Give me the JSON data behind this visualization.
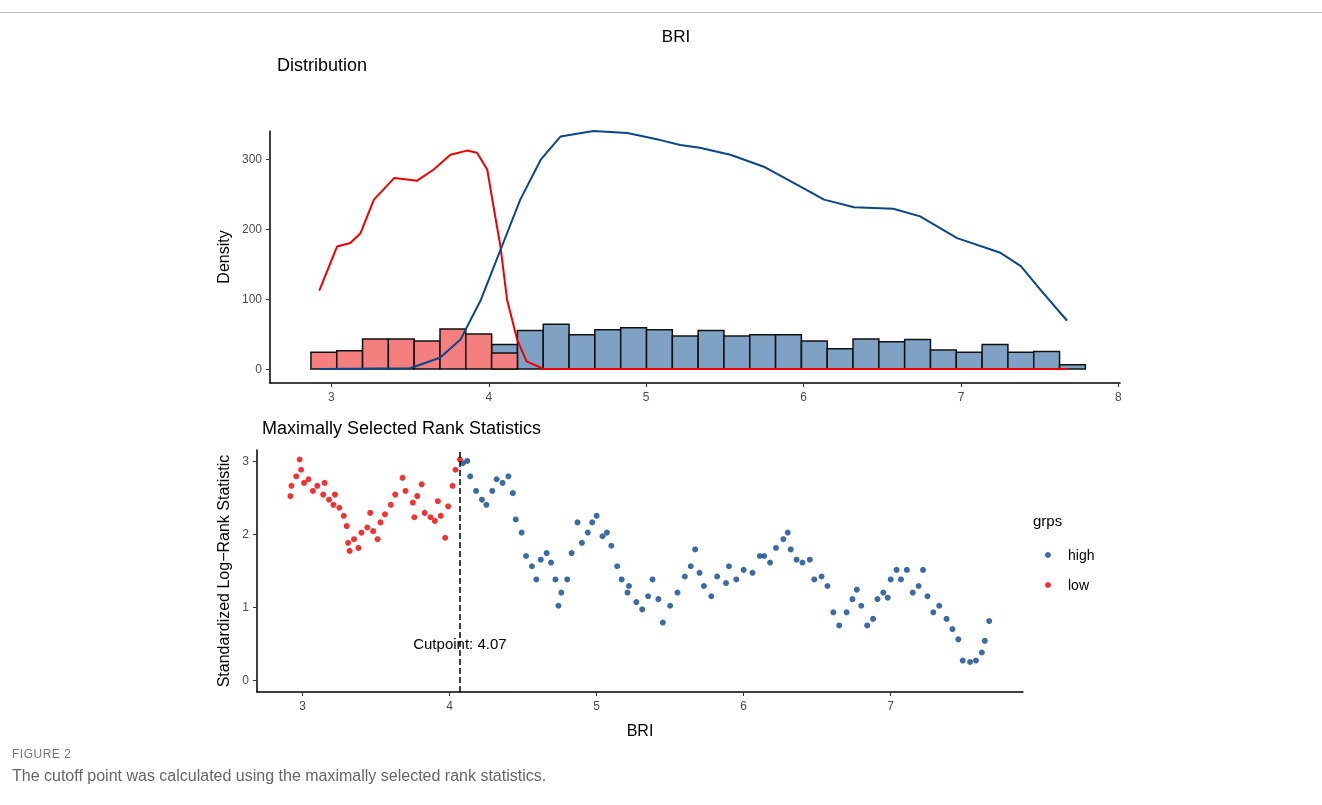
{
  "chart_data": [
    {
      "type": "histogram",
      "title": "BRI",
      "subtitle": "Distribution",
      "ylabel": "Density",
      "bins": [
        2.87,
        3.034,
        3.198,
        3.362,
        3.526,
        3.69,
        3.854,
        4.018,
        4.182,
        4.346,
        4.51,
        4.674,
        4.838,
        5.002,
        5.166,
        5.33,
        5.494,
        5.658,
        5.822,
        5.986,
        6.15,
        6.314,
        6.478,
        6.642,
        6.806,
        6.97,
        7.134,
        7.298,
        7.462,
        7.626,
        7.79
      ],
      "series": [
        {
          "color": "#7fa1c4",
          "values": [
            null,
            null,
            null,
            null,
            null,
            null,
            null,
            35,
            55,
            64,
            49,
            56,
            59,
            56,
            47,
            55,
            47,
            49,
            49,
            40,
            29,
            43,
            39,
            42,
            27,
            24,
            35,
            24,
            25,
            6
          ]
        },
        {
          "color": "#f47f7f",
          "values": [
            24,
            26,
            43,
            43,
            40,
            57,
            50,
            23,
            null,
            null,
            null,
            null,
            null,
            null,
            null,
            null,
            null,
            null,
            null,
            null,
            null,
            null,
            null,
            null,
            null,
            null,
            null,
            null,
            null,
            null
          ]
        },
        {
          "type": "line",
          "color": "#ee0000",
          "x": [
            2.925,
            3.036,
            3.12,
            3.185,
            3.27,
            3.4,
            3.545,
            3.65,
            3.756,
            3.862,
            3.925,
            3.99,
            4.03,
            4.074,
            4.116,
            4.18,
            4.24,
            4.35,
            7.67
          ],
          "values": [
            113,
            175,
            180,
            194,
            242,
            273,
            269,
            285,
            306,
            312,
            309,
            285,
            232,
            175,
            99,
            42,
            11,
            0,
            0
          ]
        },
        {
          "type": "line",
          "color": "#0a468c",
          "x": [
            2.925,
            3.5,
            3.69,
            3.82,
            3.95,
            4.074,
            4.2,
            4.33,
            4.455,
            4.665,
            4.88,
            5.09,
            5.217,
            5.34,
            5.535,
            5.747,
            5.96,
            6.13,
            6.32,
            6.57,
            6.74,
            6.975,
            7.25,
            7.38,
            7.505,
            7.67
          ],
          "values": [
            0,
            1,
            16,
            42,
            99,
            170,
            242,
            299,
            332,
            340,
            337,
            327,
            320,
            316,
            306,
            289,
            263,
            242,
            231,
            229,
            218,
            187,
            166,
            147,
            113,
            70
          ]
        }
      ],
      "xlim": [
        2.61,
        8.01
      ],
      "xticks": [
        3,
        4,
        5,
        6,
        7,
        8
      ],
      "ylim": [
        -20,
        340
      ],
      "yticks": [
        0,
        100,
        200,
        300
      ]
    },
    {
      "type": "scatter",
      "title": "Maximally Selected Rank Statistics",
      "xlabel": "BRI",
      "ylabel": "Standardized Log−Rank Statistic",
      "legend_title": "grps",
      "legend": "right",
      "marker": "circle",
      "series": [
        {
          "name": "high",
          "color": "#0a468c",
          "x": [
            4.09,
            4.12,
            4.14,
            4.18,
            4.22,
            4.25,
            4.29,
            4.32,
            4.36,
            4.4,
            4.43,
            4.45,
            4.49,
            4.52,
            4.56,
            4.59,
            4.62,
            4.66,
            4.69,
            4.72,
            4.74,
            4.76,
            4.8,
            4.83,
            4.87,
            4.9,
            4.94,
            4.97,
            5.0,
            5.04,
            5.07,
            5.1,
            5.14,
            5.17,
            5.21,
            5.22,
            5.27,
            5.31,
            5.35,
            5.38,
            5.42,
            5.45,
            5.5,
            5.55,
            5.6,
            5.64,
            5.67,
            5.7,
            5.73,
            5.78,
            5.82,
            5.88,
            5.9,
            5.95,
            6.0,
            6.06,
            6.11,
            6.14,
            6.18,
            6.22,
            6.27,
            6.3,
            6.32,
            6.36,
            6.4,
            6.45,
            6.48,
            6.53,
            6.57,
            6.61,
            6.65,
            6.7,
            6.74,
            6.77,
            6.8,
            6.84,
            6.88,
            6.91,
            6.95,
            6.98,
            7.0,
            7.04,
            7.07,
            7.11,
            7.15,
            7.19,
            7.22,
            7.25,
            7.29,
            7.33,
            7.38,
            7.42,
            7.46,
            7.49,
            7.54,
            7.58,
            7.62,
            7.64,
            7.67
          ],
          "values": [
            2.97,
            3.0,
            2.79,
            2.59,
            2.47,
            2.4,
            2.59,
            2.75,
            2.7,
            2.79,
            2.56,
            2.2,
            2.02,
            1.7,
            1.56,
            1.38,
            1.65,
            1.74,
            1.61,
            1.38,
            1.02,
            1.2,
            1.38,
            1.74,
            2.16,
            1.88,
            2.02,
            2.16,
            2.25,
            1.97,
            2.02,
            1.84,
            1.56,
            1.38,
            1.2,
            1.29,
            1.07,
            0.97,
            1.15,
            1.38,
            1.11,
            0.79,
            1.02,
            1.2,
            1.42,
            1.56,
            1.79,
            1.47,
            1.29,
            1.15,
            1.42,
            1.33,
            1.56,
            1.38,
            1.51,
            1.47,
            1.7,
            1.7,
            1.61,
            1.81,
            1.93,
            2.02,
            1.79,
            1.65,
            1.61,
            1.65,
            1.38,
            1.42,
            1.29,
            0.93,
            0.75,
            0.93,
            1.11,
            1.24,
            1.02,
            0.75,
            0.84,
            1.11,
            1.2,
            1.13,
            1.38,
            1.51,
            1.38,
            1.51,
            1.2,
            1.29,
            1.51,
            1.15,
            0.93,
            1.02,
            0.84,
            0.7,
            0.56,
            0.27,
            0.25,
            0.27,
            0.38,
            0.54,
            0.81
          ]
        },
        {
          "name": "low",
          "color": "#ee0000",
          "x": [
            2.917,
            2.924,
            2.957,
            2.98,
            2.99,
            3.01,
            3.04,
            3.07,
            3.1,
            3.14,
            3.15,
            3.18,
            3.21,
            3.22,
            3.25,
            3.28,
            3.3,
            3.31,
            3.32,
            3.35,
            3.38,
            3.4,
            3.44,
            3.46,
            3.48,
            3.51,
            3.53,
            3.56,
            3.6,
            3.63,
            3.68,
            3.7,
            3.75,
            3.76,
            3.78,
            3.81,
            3.83,
            3.87,
            3.9,
            3.92,
            3.94,
            3.97,
            3.99,
            4.02,
            4.04,
            4.07
          ],
          "values": [
            2.52,
            2.66,
            2.79,
            3.02,
            2.88,
            2.7,
            2.75,
            2.59,
            2.66,
            2.54,
            2.7,
            2.47,
            2.4,
            2.54,
            2.36,
            2.25,
            2.11,
            1.88,
            1.77,
            1.93,
            1.81,
            2.02,
            2.09,
            2.29,
            2.04,
            1.93,
            2.16,
            2.27,
            2.4,
            2.54,
            2.77,
            2.59,
            2.43,
            2.23,
            2.52,
            2.68,
            2.29,
            2.23,
            2.18,
            2.45,
            2.25,
            1.95,
            2.38,
            2.66,
            2.88,
            3.02
          ]
        }
      ],
      "xlim": [
        2.69,
        7.9
      ],
      "xticks": [
        3,
        4,
        5,
        6,
        7
      ],
      "ylim": [
        -0.16,
        3.15
      ],
      "yticks": [
        0,
        1,
        2,
        3
      ],
      "ref_lines": [
        {
          "axis": "x",
          "value": 4.07,
          "line_style": "dashed"
        }
      ],
      "annotations": [
        {
          "text": "Cutpoint: 4.07",
          "x": 4.07,
          "y": 0.5
        },
        "FIGURE 2",
        "The cutoff point was calculated using the maximally selected rank statistics."
      ]
    }
  ]
}
